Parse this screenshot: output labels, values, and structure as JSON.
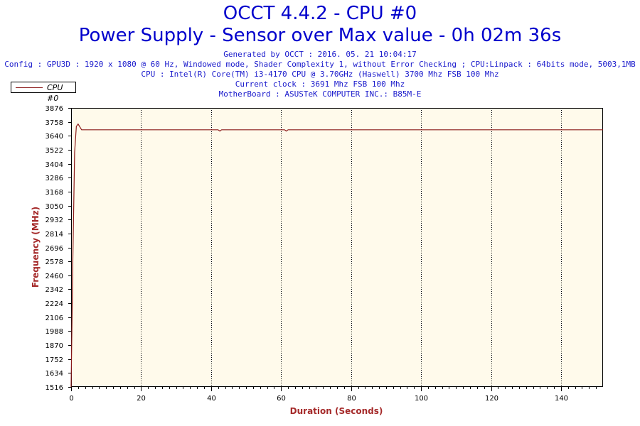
{
  "header": {
    "title": "OCCT 4.4.2 - CPU #0",
    "subtitle": "Power Supply - Sensor over Max value - 0h 02m 36s",
    "generated": "Generated by OCCT : 2016. 05. 21 10:04:17",
    "config": "Config : GPU3D : 1920 x 1080 @ 60 Hz, Windowed mode, Shader Complexity 1, without Error Checking ; CPU:Linpack : 64bits mode, 5003,1MB",
    "cpu": "CPU : Intel(R) Core(TM) i3-4170 CPU @ 3.70GHz (Haswell) 3700 Mhz FSB 100 Mhz",
    "clock": "Current clock : 3691 Mhz FSB 100 Mhz",
    "motherboard": "MotherBoard : ASUSTeK COMPUTER INC.: B85M-E"
  },
  "colors": {
    "title": "#0000cc",
    "info": "#1a1acc",
    "plot_background": "#fffaeb",
    "series": "#8b1a1a",
    "axis_title": "#a52a2a"
  },
  "chart_data": {
    "type": "line",
    "xlabel": "Duration (Seconds)",
    "ylabel": "Frequency (MHz)",
    "xlim": [
      0,
      152
    ],
    "ylim": [
      1516,
      3876
    ],
    "x_ticks": [
      0,
      20,
      40,
      60,
      80,
      100,
      120,
      140
    ],
    "y_ticks": [
      1516,
      1634,
      1752,
      1870,
      1988,
      2106,
      2224,
      2342,
      2460,
      2578,
      2696,
      2814,
      2932,
      3050,
      3168,
      3286,
      3404,
      3522,
      3640,
      3758,
      3876
    ],
    "grid": "vertical dotted at x ticks",
    "legend": "top-left",
    "series": [
      {
        "name": "CPU #0",
        "x": [
          0,
          0.5,
          1,
          1.5,
          2,
          3,
          5,
          10,
          20,
          30,
          40,
          42,
          42.5,
          43,
          50,
          60,
          61,
          61.5,
          62,
          70,
          80,
          90,
          100,
          110,
          120,
          130,
          140,
          150,
          152
        ],
        "y": [
          1516,
          2600,
          3500,
          3720,
          3740,
          3691,
          3691,
          3691,
          3691,
          3691,
          3691,
          3691,
          3680,
          3691,
          3691,
          3691,
          3691,
          3680,
          3691,
          3691,
          3691,
          3691,
          3691,
          3691,
          3691,
          3691,
          3691,
          3691,
          3691
        ]
      }
    ]
  }
}
